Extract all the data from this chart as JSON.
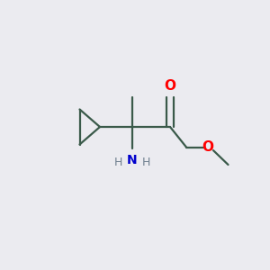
{
  "background_color": "#ebebf0",
  "bond_color": "#3a5a4a",
  "atom_colors": {
    "O": "#ff0000",
    "N": "#0000cc",
    "H": "#708090",
    "C": "#3a5a4a"
  },
  "figsize": [
    3.0,
    3.0
  ],
  "dpi": 100,
  "xlim": [
    0,
    10
  ],
  "ylim": [
    0,
    10
  ]
}
